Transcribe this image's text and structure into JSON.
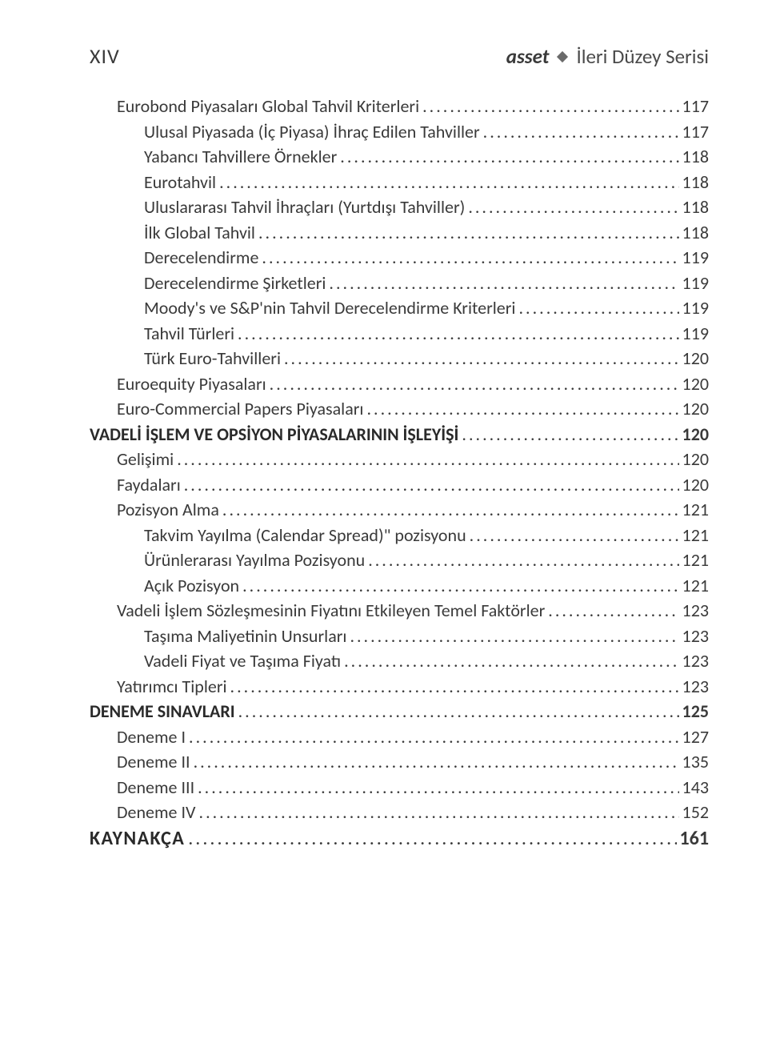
{
  "header": {
    "page_number": "XIV",
    "brand_name": "asset",
    "series": "İleri Düzey Serisi"
  },
  "toc": [
    {
      "level": 1,
      "label": "Eurobond Piyasaları Global Tahvil Kriterleri",
      "page": "117"
    },
    {
      "level": 2,
      "label": "Ulusal Piyasada (İç Piyasa) İhraç Edilen Tahviller",
      "page": "117"
    },
    {
      "level": 2,
      "label": "Yabancı Tahvillere Örnekler",
      "page": "118"
    },
    {
      "level": 2,
      "label": "Eurotahvil",
      "page": "118"
    },
    {
      "level": 2,
      "label": "Uluslararası Tahvil İhraçları (Yurtdışı Tahviller)",
      "page": "118"
    },
    {
      "level": 2,
      "label": "İlk Global Tahvil",
      "page": "118"
    },
    {
      "level": 2,
      "label": "Derecelendirme",
      "page": "119"
    },
    {
      "level": 2,
      "label": "Derecelendirme Şirketleri",
      "page": "119"
    },
    {
      "level": 2,
      "label": "Moody's ve S&P'nin Tahvil Derecelendirme Kriterleri",
      "page": "119"
    },
    {
      "level": 2,
      "label": "Tahvil Türleri",
      "page": "119"
    },
    {
      "level": 2,
      "label": "Türk Euro-Tahvilleri",
      "page": "120"
    },
    {
      "level": 1,
      "label": "Euroequity Piyasaları",
      "page": "120"
    },
    {
      "level": 1,
      "label": "Euro-Commercial Papers Piyasaları",
      "page": "120"
    },
    {
      "level": 0,
      "label": "VADELİ İŞLEM VE OPSİYON PİYASALARININ İŞLEYİŞİ",
      "page": "120",
      "bold": true
    },
    {
      "level": 1,
      "label": "Gelişimi",
      "page": "120"
    },
    {
      "level": 1,
      "label": "Faydaları",
      "page": "120"
    },
    {
      "level": 1,
      "label": "Pozisyon Alma",
      "page": "121"
    },
    {
      "level": 2,
      "label": "Takvim Yayılma (Calendar Spread)\" pozisyonu",
      "page": "121"
    },
    {
      "level": 2,
      "label": "Ürünlerarası Yayılma Pozisyonu",
      "page": "121"
    },
    {
      "level": 2,
      "label": "Açık Pozisyon",
      "page": "121"
    },
    {
      "level": 1,
      "label": "Vadeli İşlem Sözleşmesinin Fiyatını Etkileyen Temel Faktörler",
      "page": "123"
    },
    {
      "level": 2,
      "label": "Taşıma Maliyetinin Unsurları",
      "page": "123"
    },
    {
      "level": 2,
      "label": "Vadeli Fiyat ve Taşıma Fiyatı",
      "page": "123"
    },
    {
      "level": 1,
      "label": "Yatırımcı Tipleri",
      "page": "123"
    },
    {
      "level": 0,
      "label": "DENEME SINAVLARI",
      "page": "125",
      "bold": true
    },
    {
      "level": 1,
      "label": "Deneme I",
      "page": "127"
    },
    {
      "level": 1,
      "label": "Deneme II",
      "page": "135"
    },
    {
      "level": 1,
      "label": "Deneme III",
      "page": "143"
    },
    {
      "level": 1,
      "label": "Deneme IV",
      "page": "152"
    },
    {
      "level": 0,
      "label": "KAYNAKÇA",
      "page": "161",
      "bold": true,
      "spaced": true,
      "large": true
    }
  ]
}
